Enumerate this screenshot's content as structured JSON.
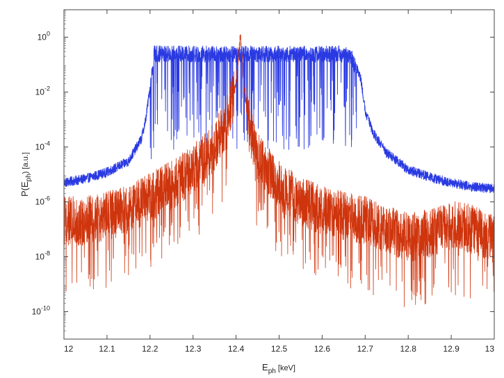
{
  "chart_data": {
    "type": "line",
    "title": "",
    "xlabel": {
      "main": "E",
      "sub": "ph",
      "unit": " [keV]"
    },
    "ylabel": {
      "main": "P(E",
      "sub": "ph",
      "tail": ") [a.u.]"
    },
    "xlim": [
      12.0,
      13.0
    ],
    "ylim": [
      1e-11,
      10
    ],
    "yscale": "log",
    "grid": false,
    "legend": "none",
    "x_ticks": [
      12.0,
      12.1,
      12.2,
      12.3,
      12.4,
      12.5,
      12.6,
      12.7,
      12.8,
      12.9,
      13.0
    ],
    "x_tick_labels": [
      "12",
      "12.1",
      "12.2",
      "12.3",
      "12.4",
      "12.5",
      "12.6",
      "12.7",
      "12.8",
      "12.9",
      "13"
    ],
    "y_tick_exponents": [
      0,
      -2,
      -4,
      -6,
      -8,
      -10
    ],
    "y_tick_base": "10",
    "series": [
      {
        "color": "#1f2fe0",
        "x": [
          12.0,
          12.05,
          12.1,
          12.15,
          12.18,
          12.19,
          12.2,
          12.21,
          12.25,
          12.3,
          12.35,
          12.4,
          12.45,
          12.5,
          12.55,
          12.6,
          12.65,
          12.67,
          12.69,
          12.7,
          12.72,
          12.75,
          12.8,
          12.85,
          12.9,
          12.95,
          13.0
        ],
        "y": [
          5e-06,
          7e-06,
          1.2e-05,
          3e-05,
          0.0002,
          0.001,
          0.015,
          0.3,
          0.3,
          0.3,
          0.3,
          0.3,
          0.3,
          0.3,
          0.3,
          0.3,
          0.3,
          0.2,
          0.03,
          0.002,
          0.0003,
          6e-05,
          1.5e-05,
          8e-06,
          5e-06,
          3.5e-06,
          3e-06
        ]
      },
      {
        "color": "#cc2a00",
        "x": [
          12.0,
          12.05,
          12.1,
          12.15,
          12.2,
          12.25,
          12.3,
          12.35,
          12.38,
          12.4,
          12.41,
          12.42,
          12.43,
          12.45,
          12.5,
          12.55,
          12.6,
          12.65,
          12.7,
          12.75,
          12.8,
          12.85,
          12.9,
          12.95,
          13.0
        ],
        "y": [
          2e-07,
          2e-07,
          3e-07,
          5e-07,
          1.5e-06,
          4e-06,
          1.5e-05,
          0.0001,
          0.001,
          0.02,
          1.2,
          0.01,
          0.0005,
          4e-05,
          4e-06,
          1e-06,
          5e-07,
          3e-07,
          2e-07,
          1e-07,
          5e-08,
          7e-08,
          1.5e-07,
          1e-07,
          4e-08
        ]
      }
    ]
  }
}
